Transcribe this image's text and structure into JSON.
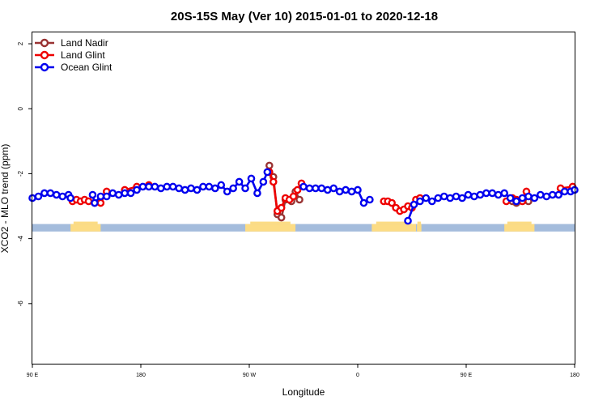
{
  "colors": {
    "land_nadir": "#993333",
    "land_glint": "#ee0000",
    "ocean_glint": "#0000ee",
    "ocean_band": "#a4bcdc",
    "land_band": "#fcdc84"
  },
  "chart_data": {
    "type": "line",
    "title": "20S-15S May (Ver 10)   2015-01-01 to 2020-12-18",
    "xlabel": "Longitude",
    "ylabel": "XCO2 - MLO trend (ppm)",
    "xlim": [
      -270,
      0
    ],
    "ylim": [
      -7.85,
      2.35
    ],
    "x_ticks": [
      {
        "value": -270,
        "label": "90 E"
      },
      {
        "value": -216,
        "label": "180"
      },
      {
        "value": -162,
        "label": "90 W"
      },
      {
        "value": -108,
        "label": "0"
      },
      {
        "value": -54,
        "label": "90 E"
      },
      {
        "value": 0,
        "label": "180"
      }
    ],
    "y_ticks": [
      {
        "value": 2,
        "label": "2"
      },
      {
        "value": 0,
        "label": "0"
      },
      {
        "value": -2,
        "label": "-2"
      },
      {
        "value": -4,
        "label": "-4"
      },
      {
        "value": -6,
        "label": "-6"
      }
    ],
    "legend": {
      "position": "top-left",
      "entries": [
        {
          "name": "Land Nadir",
          "color_key": "land_nadir"
        },
        {
          "name": "Land Glint",
          "color_key": "land_glint"
        },
        {
          "name": "Ocean Glint",
          "color_key": "ocean_glint"
        }
      ]
    },
    "surface_band": {
      "y_range": [
        -3.78,
        -3.55
      ],
      "land_segments": [
        [
          -251,
          -236
        ],
        [
          -164,
          -139
        ],
        [
          -101,
          -79
        ],
        [
          -78.5,
          -76.3
        ],
        [
          -35,
          -20
        ]
      ]
    },
    "series": [
      {
        "name": "Land Nadir",
        "color_key": "land_nadir",
        "points": [
          [
            -152,
            -1.75
          ],
          [
            -150,
            -2.1
          ],
          [
            -148,
            -3.25
          ],
          [
            -146,
            -3.35
          ],
          [
            -144,
            -2.8
          ],
          [
            -141,
            -2.85
          ],
          [
            -139,
            -2.55
          ],
          [
            -137,
            -2.8
          ],
          [
            -31,
            -2.85
          ],
          [
            -29,
            -2.9
          ],
          [
            -23,
            -2.85
          ]
        ]
      },
      {
        "name": "Land Glint",
        "color_key": "land_glint",
        "points": [
          [
            -250,
            -2.85
          ],
          [
            -248,
            -2.8
          ],
          [
            -246,
            -2.85
          ],
          [
            -244,
            -2.8
          ],
          [
            -242,
            -2.85
          ],
          [
            -239,
            -2.9
          ],
          [
            -236,
            -2.9
          ],
          [
            -233,
            -2.55
          ],
          [
            -224,
            -2.5
          ],
          [
            -218,
            -2.4
          ],
          [
            -212,
            -2.35
          ],
          [
            -152,
            -1.95
          ],
          [
            -150,
            -2.25
          ],
          [
            -148,
            -3.15
          ],
          [
            -146,
            -3.05
          ],
          [
            -144,
            -2.75
          ],
          [
            -142,
            -2.8
          ],
          [
            -140,
            -2.7
          ],
          [
            -138,
            -2.5
          ],
          [
            -136,
            -2.3
          ],
          [
            -95,
            -2.85
          ],
          [
            -93,
            -2.85
          ],
          [
            -91,
            -2.9
          ],
          [
            -89,
            -3.05
          ],
          [
            -87,
            -3.15
          ],
          [
            -85,
            -3.1
          ],
          [
            -83,
            -3.0
          ],
          [
            -81,
            -3.05
          ],
          [
            -79,
            -2.8
          ],
          [
            -77,
            -2.75
          ],
          [
            -34,
            -2.85
          ],
          [
            -31,
            -2.75
          ],
          [
            -29,
            -2.8
          ],
          [
            -26,
            -2.85
          ],
          [
            -24,
            -2.55
          ],
          [
            -7,
            -2.45
          ],
          [
            -1,
            -2.4
          ]
        ]
      },
      {
        "name": "Ocean Glint",
        "color_key": "ocean_glint",
        "points": [
          [
            -270,
            -2.75
          ],
          [
            -267,
            -2.7
          ],
          [
            -264,
            -2.6
          ],
          [
            -261,
            -2.6
          ],
          [
            -258,
            -2.65
          ],
          [
            -255,
            -2.7
          ],
          [
            -252,
            -2.65
          ],
          [
            -251,
            -2.75
          ],
          [
            -240,
            -2.65
          ],
          [
            -239,
            -2.9
          ],
          [
            -236,
            -2.7
          ],
          [
            -233,
            -2.7
          ],
          [
            -230,
            -2.6
          ],
          [
            -227,
            -2.65
          ],
          [
            -224,
            -2.6
          ],
          [
            -221,
            -2.6
          ],
          [
            -218,
            -2.5
          ],
          [
            -215,
            -2.4
          ],
          [
            -212,
            -2.4
          ],
          [
            -209,
            -2.4
          ],
          [
            -206,
            -2.45
          ],
          [
            -203,
            -2.4
          ],
          [
            -200,
            -2.4
          ],
          [
            -197,
            -2.45
          ],
          [
            -194,
            -2.5
          ],
          [
            -191,
            -2.45
          ],
          [
            -188,
            -2.5
          ],
          [
            -185,
            -2.4
          ],
          [
            -182,
            -2.4
          ],
          [
            -179,
            -2.45
          ],
          [
            -176,
            -2.35
          ],
          [
            -173,
            -2.55
          ],
          [
            -170,
            -2.45
          ],
          [
            -167,
            -2.25
          ],
          [
            -164,
            -2.45
          ],
          [
            -161,
            -2.15
          ],
          [
            -158,
            -2.6
          ],
          [
            -155,
            -2.25
          ],
          [
            -153,
            -1.95
          ],
          [
            -135,
            -2.4
          ],
          [
            -132,
            -2.45
          ],
          [
            -129,
            -2.45
          ],
          [
            -126,
            -2.45
          ],
          [
            -123,
            -2.5
          ],
          [
            -120,
            -2.45
          ],
          [
            -117,
            -2.55
          ],
          [
            -114,
            -2.5
          ],
          [
            -111,
            -2.55
          ],
          [
            -108,
            -2.5
          ],
          [
            -105,
            -2.9
          ],
          [
            -102,
            -2.8
          ],
          [
            -83,
            -3.45
          ],
          [
            -80,
            -2.95
          ],
          [
            -77,
            -2.85
          ],
          [
            -74,
            -2.75
          ],
          [
            -71,
            -2.85
          ],
          [
            -68,
            -2.75
          ],
          [
            -65,
            -2.7
          ],
          [
            -62,
            -2.75
          ],
          [
            -59,
            -2.7
          ],
          [
            -56,
            -2.75
          ],
          [
            -53,
            -2.65
          ],
          [
            -50,
            -2.7
          ],
          [
            -47,
            -2.65
          ],
          [
            -44,
            -2.6
          ],
          [
            -41,
            -2.6
          ],
          [
            -38,
            -2.65
          ],
          [
            -35,
            -2.6
          ],
          [
            -32,
            -2.75
          ],
          [
            -29,
            -2.85
          ],
          [
            -26,
            -2.75
          ],
          [
            -23,
            -2.7
          ],
          [
            -20,
            -2.75
          ],
          [
            -17,
            -2.65
          ],
          [
            -14,
            -2.7
          ],
          [
            -11,
            -2.65
          ],
          [
            -8,
            -2.65
          ],
          [
            -5,
            -2.55
          ],
          [
            -2,
            -2.55
          ],
          [
            0,
            -2.5
          ]
        ]
      }
    ]
  }
}
